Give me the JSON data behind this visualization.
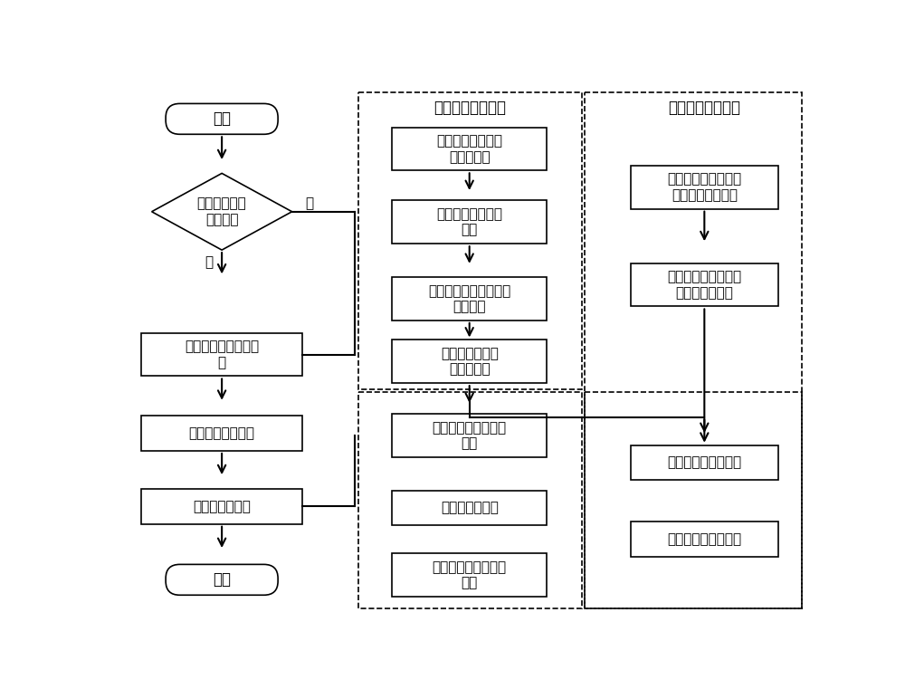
{
  "bg_color": "#ffffff",
  "left_flow": {
    "start_label": "开始",
    "diamond_label": "检查是否有刚\n下线产品",
    "box1_label": "读取数据进行分段判\n定",
    "box2_label": "给出分段判定等级",
    "box3_label": "分切意见和建议",
    "end_label": "结束",
    "yes_label": "是",
    "no_label": "否"
  },
  "middle_section": {
    "title": "表检判定标准转换",
    "box1": "缺陷名称和质量结\n果统一标准",
    "box2": "缺陷严重程度等级\n量化",
    "box3": "确定不同用户、钢种的\n加权系数",
    "box4": "带权缺陷量与质\n量结果对应",
    "box5": "表面判定规则等级对\n照表",
    "box6": "缺陷权重对照表",
    "box7": "缺陷量与质量结果对\n照表"
  },
  "right_section": {
    "title": "过程判定标准转换",
    "box1": "规范过程参数控制点\n的名称和质量结果",
    "box2": "确定不同用户、钢种\n的过程参数范围",
    "box3": "过程参数判定规则表",
    "box4": "综合判定等级配置表"
  }
}
